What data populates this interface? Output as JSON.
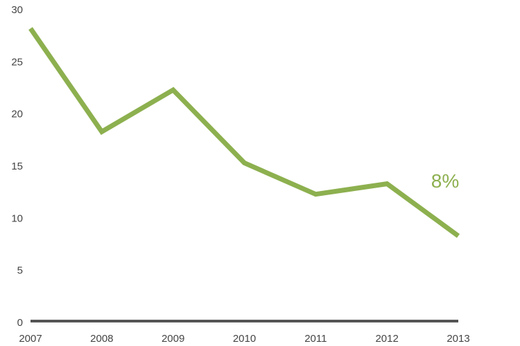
{
  "chart_data": {
    "type": "line",
    "title": "",
    "xlabel": "",
    "ylabel": "",
    "x": [
      "2007",
      "2008",
      "2009",
      "2010",
      "2011",
      "2012",
      "2013"
    ],
    "series": [
      {
        "values": [
          28.2,
          18.3,
          22.3,
          15.3,
          12.3,
          13.3,
          8.3
        ]
      }
    ],
    "ylim": [
      0,
      30
    ],
    "yticks": [
      "0",
      "5",
      "10",
      "15",
      "20",
      "25",
      "30"
    ],
    "grid": false,
    "legend": "none",
    "annotation": {
      "text": "8%",
      "at_x": "2013"
    },
    "colors": {
      "line": "#8db04f",
      "axis": "#555555",
      "tick_text": "#444444"
    }
  }
}
